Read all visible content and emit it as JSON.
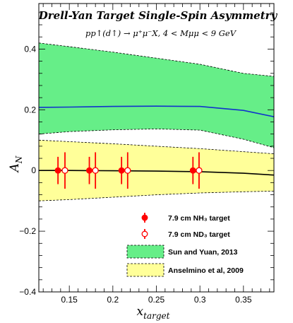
{
  "chart_data": {
    "type": "scatter",
    "title": "Drell-Yan Target Single-Spin Asymmetry",
    "subtitle": "pp↑(d↑) → μ⁺μ⁻X, 4 < Mμμ < 9 GeV",
    "ylabel": "A",
    "ylabel_sub": "N",
    "xlabel": "x",
    "xlabel_sub": "target",
    "xlim": [
      0.115,
      0.385
    ],
    "ylim": [
      -0.4,
      0.55
    ],
    "x_ticks": [
      0.15,
      0.2,
      0.25,
      0.3,
      0.35
    ],
    "x_tick_labels": [
      "0.15",
      "0.2",
      "0.25",
      "0.3",
      "0.35"
    ],
    "y_ticks": [
      -0.4,
      -0.2,
      0,
      0.2,
      0.4
    ],
    "y_tick_labels": [
      "−0.4",
      "−0.2",
      "0",
      "0.2",
      "0.4"
    ],
    "legend_position": "bottom-right",
    "series": [
      {
        "name": "7.9 cm NH₃ target",
        "kind": "points",
        "marker": "filled-circle",
        "color": "#ff0000",
        "x": [
          0.137,
          0.173,
          0.21,
          0.292
        ],
        "y": [
          0.0,
          0.0,
          0.0,
          0.0
        ],
        "yerr": [
          0.045,
          0.045,
          0.045,
          0.045
        ]
      },
      {
        "name": "7.9 cm ND₃ target",
        "kind": "points",
        "marker": "open-circle",
        "color": "#ff0000",
        "x": [
          0.145,
          0.18,
          0.217,
          0.299
        ],
        "y": [
          0.0,
          0.0,
          0.0,
          0.0
        ],
        "yerr": [
          0.06,
          0.06,
          0.06,
          0.06
        ]
      },
      {
        "name": "Sun and Yuan, 2013",
        "kind": "band",
        "fill": "#66ee88",
        "line_color": "#1133cc",
        "x": [
          0.115,
          0.15,
          0.2,
          0.25,
          0.3,
          0.35,
          0.385
        ],
        "upper": [
          0.42,
          0.408,
          0.39,
          0.37,
          0.35,
          0.32,
          0.31
        ],
        "central": [
          0.208,
          0.209,
          0.211,
          0.212,
          0.211,
          0.198,
          0.177
        ],
        "lower": [
          0.12,
          0.128,
          0.134,
          0.137,
          0.133,
          0.103,
          0.075
        ]
      },
      {
        "name": "Anselmino et al, 2009",
        "kind": "band",
        "fill": "#ffff99",
        "line_color": "#000000",
        "x": [
          0.115,
          0.15,
          0.2,
          0.25,
          0.3,
          0.35,
          0.385
        ],
        "upper": [
          0.1,
          0.095,
          0.088,
          0.08,
          0.072,
          0.062,
          0.055
        ],
        "central": [
          0.0,
          0.0,
          -0.001,
          -0.002,
          -0.004,
          -0.009,
          -0.015
        ],
        "lower": [
          -0.1,
          -0.096,
          -0.088,
          -0.08,
          -0.074,
          -0.07,
          -0.068
        ]
      }
    ]
  }
}
